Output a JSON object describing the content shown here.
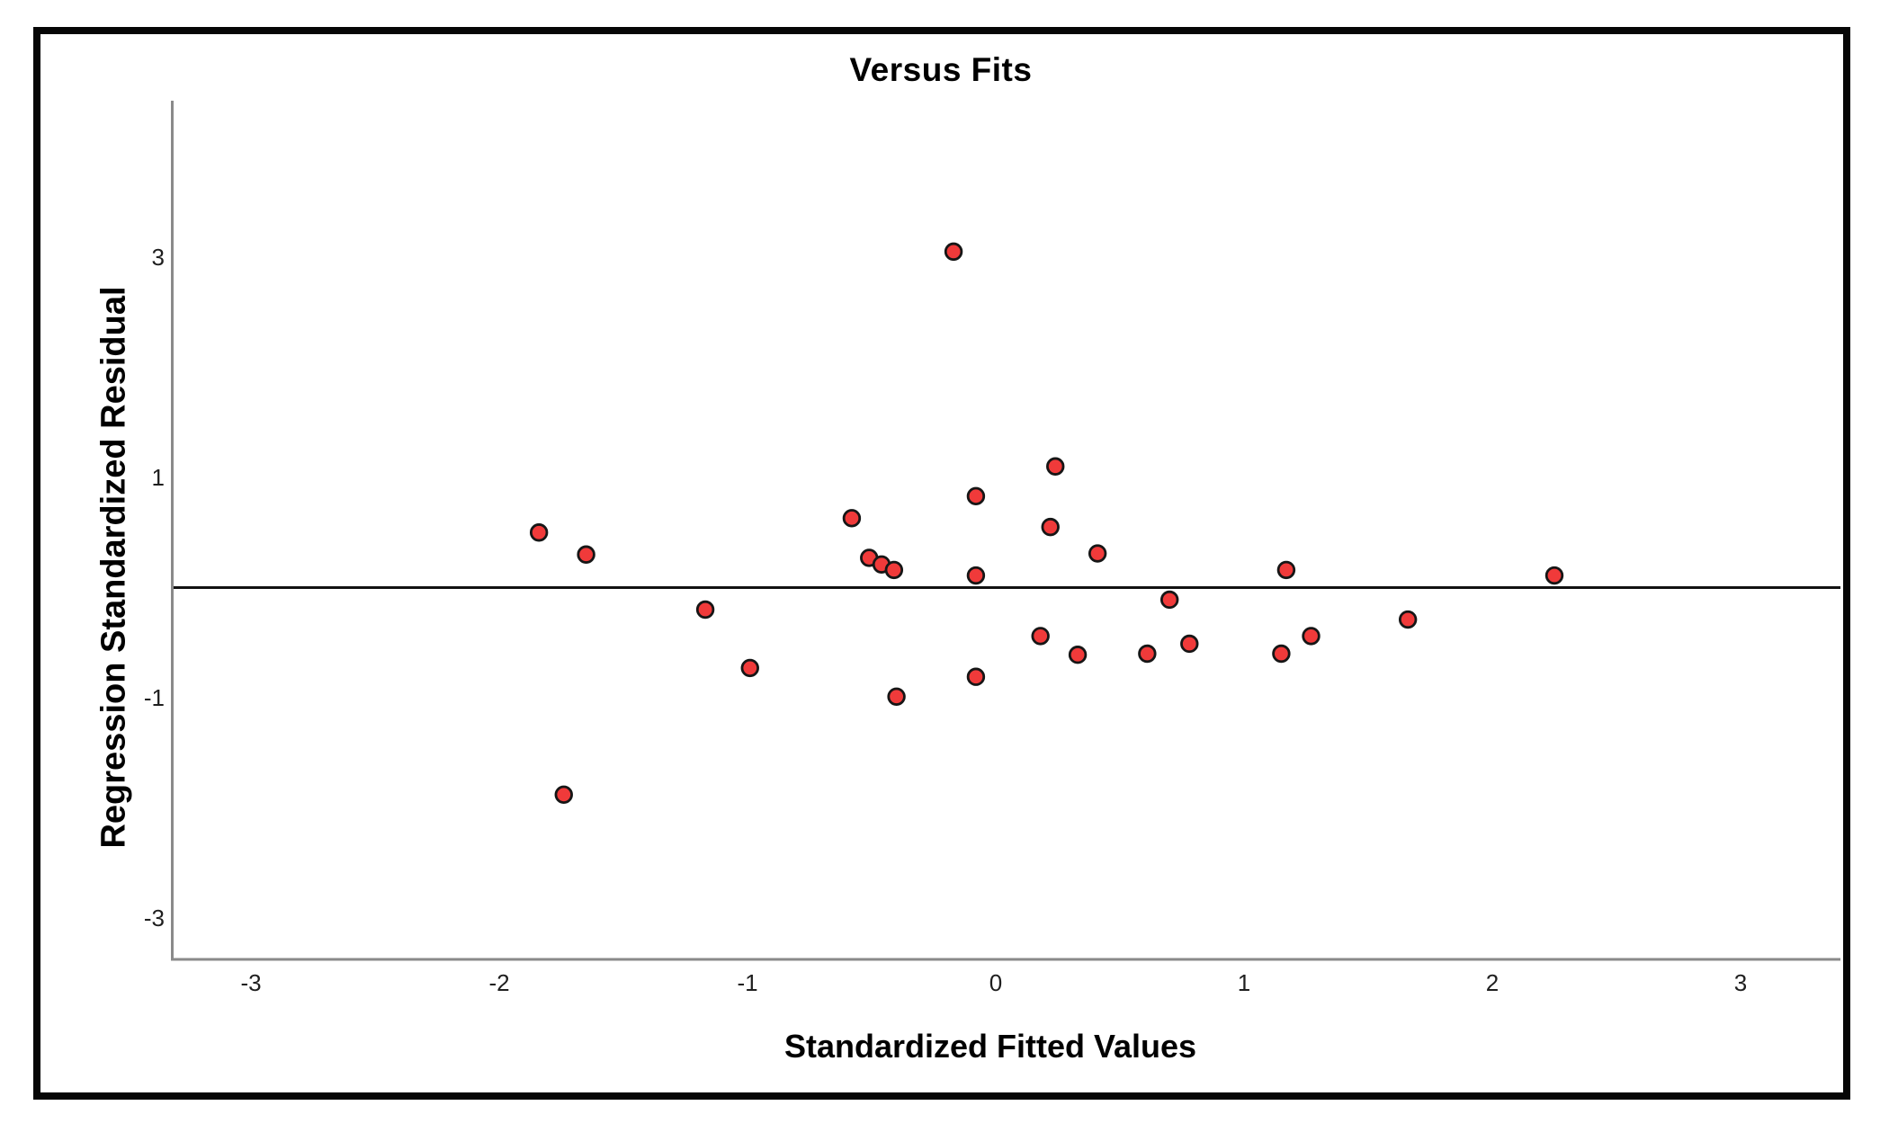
{
  "figure": {
    "title": "Versus Fits",
    "x_axis_label": "Standardized Fitted Values",
    "y_axis_label": "Regression Standardized Residual"
  },
  "chart_data": {
    "type": "scatter",
    "title": "Versus Fits",
    "xlabel": "Standardized Fitted Values",
    "ylabel": "Regression Standardized Residual",
    "x_ticks": [
      -3,
      -2,
      -1,
      0,
      1,
      2,
      3
    ],
    "y_ticks": [
      3,
      1,
      -1,
      -3
    ],
    "xlim": [
      -3.3,
      3.4
    ],
    "ylim": [
      -3.4,
      4.4
    ],
    "grid": false,
    "legend": "none",
    "reference_line_y": 0,
    "points": [
      {
        "x": -1.84,
        "y": 0.5
      },
      {
        "x": -1.74,
        "y": -1.88
      },
      {
        "x": -1.65,
        "y": 0.3
      },
      {
        "x": -1.17,
        "y": -0.2
      },
      {
        "x": -0.99,
        "y": -0.73
      },
      {
        "x": -0.58,
        "y": 0.63
      },
      {
        "x": -0.51,
        "y": 0.27
      },
      {
        "x": -0.46,
        "y": 0.21
      },
      {
        "x": -0.41,
        "y": 0.16
      },
      {
        "x": -0.4,
        "y": -0.99
      },
      {
        "x": -0.17,
        "y": 3.05
      },
      {
        "x": -0.08,
        "y": 0.83
      },
      {
        "x": -0.08,
        "y": 0.11
      },
      {
        "x": -0.08,
        "y": -0.81
      },
      {
        "x": 0.18,
        "y": -0.44
      },
      {
        "x": 0.22,
        "y": 0.55
      },
      {
        "x": 0.24,
        "y": 1.1
      },
      {
        "x": 0.33,
        "y": -0.61
      },
      {
        "x": 0.41,
        "y": 0.31
      },
      {
        "x": 0.61,
        "y": -0.6
      },
      {
        "x": 0.7,
        "y": -0.11
      },
      {
        "x": 0.78,
        "y": -0.51
      },
      {
        "x": 1.15,
        "y": -0.6
      },
      {
        "x": 1.17,
        "y": 0.16
      },
      {
        "x": 1.27,
        "y": -0.44
      },
      {
        "x": 1.66,
        "y": -0.29
      },
      {
        "x": 2.25,
        "y": 0.11
      }
    ],
    "colors": {
      "point_fill": "#f03a3a",
      "point_edge": "#161616",
      "axis_line": "#8a8a8a",
      "reference_line": "#121212",
      "frame_border": "#060606",
      "tick_text": "#1f1f1f"
    }
  }
}
